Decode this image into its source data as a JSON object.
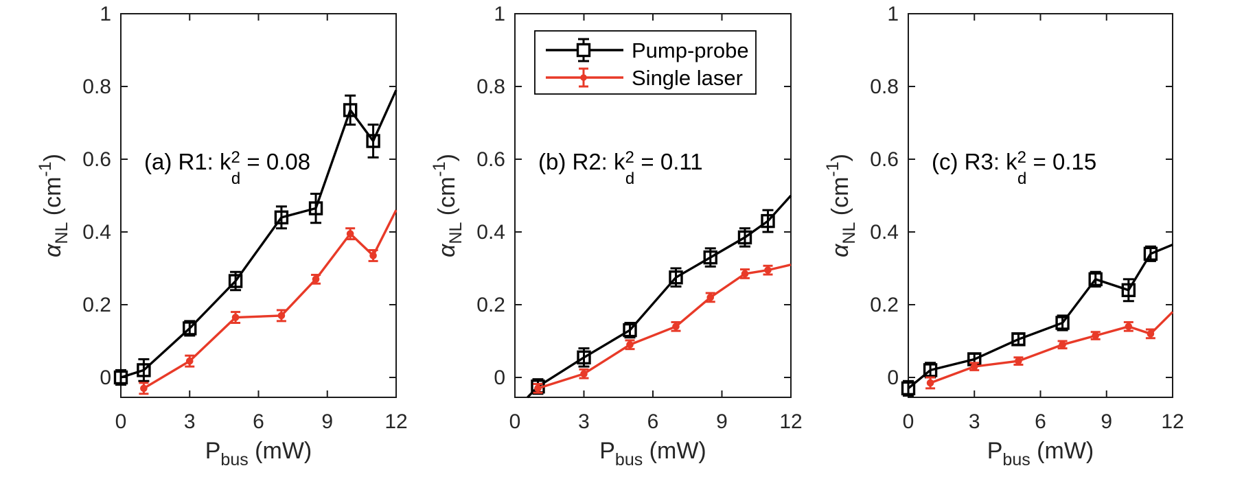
{
  "figure": {
    "background": "#ffffff",
    "axis_color": "#1a1a1a",
    "tick_label_color": "#262626",
    "pump_probe_color": "#000000",
    "single_laser_color": "#e83a28"
  },
  "legend": {
    "entries": [
      {
        "label": "Pump-probe",
        "color": "#000000",
        "marker": "open-square-with-errorbar"
      },
      {
        "label": "Single laser",
        "color": "#e83a28",
        "marker": "filled-circle-with-errorbar"
      }
    ],
    "position": "top-left-of-middle-panel"
  },
  "axes": {
    "xlabel_parts": {
      "pre": "P",
      "sub": "bus",
      "post": "  (mW)"
    },
    "ylabel_parts": {
      "alpha": "α",
      "sub": "NL",
      "mid": " (cm",
      "sup": "-1",
      "post": ")"
    },
    "xtick_labels": [
      "0",
      "3",
      "6",
      "9",
      "12"
    ],
    "ytick_labels": [
      "0",
      "0.2",
      "0.4",
      "0.6",
      "0.8",
      "1"
    ]
  },
  "chart_data": [
    {
      "type": "line",
      "panel": "a",
      "annotation_parts": {
        "pre": "(a) R1: k",
        "sup": "2",
        "sub": "d",
        "post": " = 0.08"
      },
      "xlabel": "P_bus (mW)",
      "ylabel": "alpha_NL (cm^-1)",
      "xlim": [
        0,
        12
      ],
      "ylim": [
        -0.055,
        1.0
      ],
      "xticks": [
        0,
        3,
        6,
        9,
        12
      ],
      "yticks": [
        0,
        0.2,
        0.4,
        0.6,
        0.8,
        1
      ],
      "grid": false,
      "series": [
        {
          "name": "Pump-probe",
          "color": "#000000",
          "marker": "open-square",
          "x": [
            0,
            1,
            3,
            5,
            7,
            8.5,
            10,
            11
          ],
          "y": [
            0.0,
            0.02,
            0.135,
            0.265,
            0.44,
            0.465,
            0.735,
            0.65
          ],
          "yerr": [
            0.02,
            0.03,
            0.02,
            0.025,
            0.03,
            0.04,
            0.04,
            0.045
          ],
          "line_end": {
            "x": 12,
            "y": 0.79
          }
        },
        {
          "name": "Single laser",
          "color": "#e83a28",
          "marker": "filled-circle",
          "x": [
            1,
            3,
            5,
            7,
            8.5,
            10,
            11
          ],
          "y": [
            -0.03,
            0.045,
            0.165,
            0.17,
            0.27,
            0.395,
            0.335
          ],
          "yerr": [
            0.015,
            0.015,
            0.015,
            0.015,
            0.012,
            0.015,
            0.015
          ],
          "line_end": {
            "x": 12,
            "y": 0.46
          }
        }
      ]
    },
    {
      "type": "line",
      "panel": "b",
      "annotation_parts": {
        "pre": "(b) R2: k",
        "sup": "2",
        "sub": "d",
        "post": " = 0.11"
      },
      "xlabel": "P_bus (mW)",
      "ylabel": "alpha_NL (cm^-1)",
      "xlim": [
        0,
        12
      ],
      "ylim": [
        -0.055,
        1.0
      ],
      "xticks": [
        0,
        3,
        6,
        9,
        12
      ],
      "yticks": [
        0,
        0.2,
        0.4,
        0.6,
        0.8,
        1
      ],
      "grid": false,
      "series": [
        {
          "name": "Pump-probe",
          "color": "#000000",
          "marker": "open-square",
          "x": [
            1,
            3,
            5,
            7,
            8.5,
            10,
            11
          ],
          "y": [
            -0.025,
            0.055,
            0.13,
            0.275,
            0.33,
            0.385,
            0.43
          ],
          "yerr": [
            0.02,
            0.025,
            0.02,
            0.025,
            0.025,
            0.025,
            0.03
          ],
          "line_start": {
            "x": 0.55,
            "y": -0.055
          },
          "line_end": {
            "x": 12,
            "y": 0.5
          }
        },
        {
          "name": "Single laser",
          "color": "#e83a28",
          "marker": "filled-circle",
          "x": [
            1,
            3,
            5,
            7,
            8.5,
            10,
            11
          ],
          "y": [
            -0.03,
            0.01,
            0.09,
            0.14,
            0.22,
            0.285,
            0.295
          ],
          "yerr": [
            0.012,
            0.012,
            0.012,
            0.012,
            0.012,
            0.012,
            0.012
          ],
          "line_end": {
            "x": 12,
            "y": 0.31
          }
        }
      ]
    },
    {
      "type": "line",
      "panel": "c",
      "annotation_parts": {
        "pre": "(c) R3: k",
        "sup": "2",
        "sub": "d",
        "post": " = 0.15"
      },
      "xlabel": "P_bus (mW)",
      "ylabel": "alpha_NL (cm^-1)",
      "xlim": [
        0,
        12
      ],
      "ylim": [
        -0.055,
        1.0
      ],
      "xticks": [
        0,
        3,
        6,
        9,
        12
      ],
      "yticks": [
        0,
        0.2,
        0.4,
        0.6,
        0.8,
        1
      ],
      "grid": false,
      "series": [
        {
          "name": "Pump-probe",
          "color": "#000000",
          "marker": "open-square",
          "x": [
            0,
            1,
            3,
            5,
            7,
            8.5,
            10,
            11
          ],
          "y": [
            -0.03,
            0.02,
            0.05,
            0.105,
            0.15,
            0.27,
            0.24,
            0.34
          ],
          "yerr": [
            0.02,
            0.02,
            0.015,
            0.015,
            0.02,
            0.02,
            0.03,
            0.02
          ],
          "line_end": {
            "x": 12,
            "y": 0.365
          }
        },
        {
          "name": "Single laser",
          "color": "#e83a28",
          "marker": "filled-circle",
          "x": [
            1,
            3,
            5,
            7,
            8.5,
            10,
            11
          ],
          "y": [
            -0.015,
            0.03,
            0.045,
            0.09,
            0.115,
            0.14,
            0.12
          ],
          "yerr": [
            0.015,
            0.01,
            0.01,
            0.01,
            0.01,
            0.012,
            0.012
          ],
          "line_end": {
            "x": 12,
            "y": 0.18
          }
        }
      ]
    }
  ]
}
